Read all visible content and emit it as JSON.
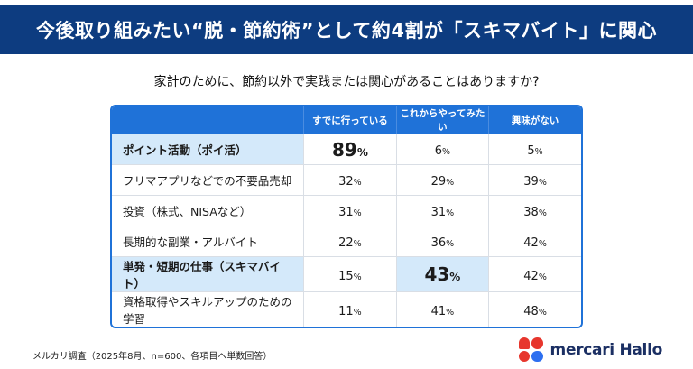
{
  "colors": {
    "banner_bg": "#0d3c80",
    "table_header_bg": "#1f72d8",
    "table_border": "#1f72d8",
    "highlight_cell": "#d4e9fa",
    "logo_red": "#e7362d",
    "logo_blue": "#2d6ff0",
    "logo_navy": "#1b2f63"
  },
  "chart_data": {
    "type": "table",
    "title": "今後取り組みたい“脱・節約術”として約4割が「スキマバイト」に関心",
    "subtitle": "家計のために、節約以外で実践または関心があることはありますか?",
    "columns": [
      "すでに行っている",
      "これからやってみたい",
      "興味がない"
    ],
    "rows": [
      {
        "label": "ポイント活動（ポイ活）",
        "values": [
          89,
          6,
          5
        ]
      },
      {
        "label": "フリマアプリなどでの不要品売却",
        "values": [
          32,
          29,
          39
        ]
      },
      {
        "label": "投資（株式、NISAなど）",
        "values": [
          31,
          31,
          38
        ]
      },
      {
        "label": "長期的な副業・アルバイト",
        "values": [
          22,
          36,
          42
        ]
      },
      {
        "label": "単発・短期の仕事（スキマバイト）",
        "values": [
          15,
          43,
          42
        ]
      },
      {
        "label": "資格取得やスキルアップのための学習",
        "values": [
          11,
          41,
          48
        ]
      }
    ],
    "unit": "%",
    "highlights": {
      "highlighted_label_rows": [
        0,
        4
      ],
      "emphasized_cells": [
        [
          0,
          0
        ],
        [
          4,
          1
        ]
      ]
    },
    "legend_position": "none",
    "grid": true
  },
  "footer": {
    "source": "メルカリ調査（2025年8月、n=600、各項目へ単数回答）",
    "logo_text": "mercari Hallo"
  }
}
